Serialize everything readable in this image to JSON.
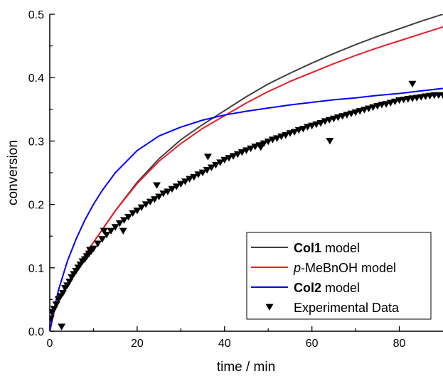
{
  "chart_data": {
    "type": "line",
    "xlabel": "time / min",
    "ylabel": "conversion",
    "xlim": [
      0,
      90
    ],
    "ylim": [
      0,
      0.5
    ],
    "xticks": [
      0,
      20,
      40,
      60,
      80
    ],
    "yticks": [
      0.0,
      0.1,
      0.2,
      0.3,
      0.4,
      0.5
    ],
    "xtick_labels": [
      "0",
      "20",
      "40",
      "60",
      "80"
    ],
    "ytick_labels": [
      "0.0",
      "0.1",
      "0.2",
      "0.3",
      "0.4",
      "0.5"
    ],
    "grid": false,
    "legend_position": "bottom-right",
    "series": [
      {
        "legend": [
          {
            "text": "Col1",
            "bold": true
          },
          {
            "text": " model"
          }
        ],
        "color": "#404040",
        "kind": "line",
        "x": [
          0,
          1,
          2,
          4,
          6,
          8,
          10,
          12,
          15,
          20,
          25,
          30,
          35,
          40,
          45,
          50,
          55,
          60,
          65,
          70,
          75,
          80,
          85,
          90
        ],
        "y": [
          0.0,
          0.03,
          0.05,
          0.075,
          0.098,
          0.12,
          0.14,
          0.16,
          0.19,
          0.235,
          0.272,
          0.302,
          0.326,
          0.348,
          0.37,
          0.39,
          0.407,
          0.423,
          0.438,
          0.452,
          0.465,
          0.477,
          0.489,
          0.5
        ]
      },
      {
        "legend": [
          {
            "text": "p",
            "italic": true
          },
          {
            "text": "-MeBnOH model"
          }
        ],
        "color": "#ed1c24",
        "kind": "line",
        "x": [
          0,
          1,
          2,
          4,
          6,
          8,
          10,
          12,
          15,
          20,
          25,
          30,
          35,
          40,
          45,
          50,
          55,
          60,
          65,
          70,
          75,
          80,
          85,
          90
        ],
        "y": [
          0.0,
          0.03,
          0.05,
          0.075,
          0.098,
          0.12,
          0.14,
          0.16,
          0.19,
          0.233,
          0.268,
          0.296,
          0.32,
          0.34,
          0.36,
          0.378,
          0.394,
          0.408,
          0.422,
          0.435,
          0.447,
          0.458,
          0.469,
          0.48
        ]
      },
      {
        "legend": [
          {
            "text": "Col2",
            "bold": true
          },
          {
            "text": " model"
          }
        ],
        "color": "#0000ff",
        "kind": "line",
        "x": [
          0,
          1,
          2,
          4,
          6,
          8,
          10,
          12,
          15,
          20,
          25,
          30,
          35,
          40,
          45,
          50,
          55,
          60,
          65,
          70,
          75,
          80,
          85,
          90
        ],
        "y": [
          0.0,
          0.035,
          0.065,
          0.11,
          0.145,
          0.175,
          0.2,
          0.222,
          0.25,
          0.285,
          0.308,
          0.322,
          0.333,
          0.341,
          0.347,
          0.352,
          0.357,
          0.361,
          0.365,
          0.368,
          0.372,
          0.375,
          0.379,
          0.383
        ]
      },
      {
        "legend": [
          {
            "text": "Experimental Data"
          }
        ],
        "color": "#000000",
        "kind": "scatter",
        "marker": "triangle-down",
        "x": [
          0.2,
          0.5,
          1,
          1.5,
          2,
          2.5,
          3,
          3.5,
          4,
          4.5,
          5,
          5.5,
          6,
          6.5,
          7,
          7.5,
          8,
          8.5,
          9,
          9.5,
          10,
          11,
          12,
          13,
          14,
          15,
          16,
          17,
          18,
          19,
          20,
          21,
          22,
          23,
          24,
          25,
          26,
          27,
          28,
          29,
          30,
          31,
          32,
          33,
          34,
          35,
          36,
          37,
          38,
          39,
          40,
          41,
          42,
          43,
          44,
          45,
          46,
          47,
          48,
          49,
          50,
          51,
          52,
          53,
          54,
          55,
          56,
          57,
          58,
          59,
          60,
          61,
          62,
          63,
          64,
          65,
          66,
          67,
          68,
          69,
          70,
          71,
          72,
          73,
          74,
          75,
          76,
          77,
          78,
          79,
          80,
          81,
          82,
          83,
          84,
          85,
          86,
          87,
          88,
          89,
          90,
          2.7,
          9.2,
          12.4,
          16.8,
          24.5,
          36.2,
          48.3,
          64.1,
          83
        ],
        "y": [
          0.02,
          0.03,
          0.035,
          0.042,
          0.05,
          0.055,
          0.06,
          0.068,
          0.072,
          0.078,
          0.085,
          0.09,
          0.095,
          0.1,
          0.105,
          0.11,
          0.113,
          0.118,
          0.122,
          0.126,
          0.13,
          0.138,
          0.145,
          0.152,
          0.158,
          0.164,
          0.17,
          0.175,
          0.18,
          0.186,
          0.19,
          0.195,
          0.2,
          0.204,
          0.208,
          0.212,
          0.217,
          0.22,
          0.224,
          0.228,
          0.232,
          0.236,
          0.24,
          0.243,
          0.247,
          0.25,
          0.254,
          0.258,
          0.262,
          0.266,
          0.27,
          0.273,
          0.276,
          0.279,
          0.282,
          0.285,
          0.288,
          0.291,
          0.293,
          0.296,
          0.299,
          0.302,
          0.304,
          0.307,
          0.309,
          0.312,
          0.314,
          0.317,
          0.319,
          0.322,
          0.324,
          0.326,
          0.328,
          0.331,
          0.333,
          0.335,
          0.337,
          0.339,
          0.341,
          0.343,
          0.345,
          0.347,
          0.349,
          0.351,
          0.353,
          0.355,
          0.357,
          0.358,
          0.36,
          0.362,
          0.364,
          0.365,
          0.366,
          0.367,
          0.368,
          0.369,
          0.37,
          0.371,
          0.372,
          0.372,
          0.372,
          0.007,
          0.128,
          0.158,
          0.158,
          0.23,
          0.275,
          0.29,
          0.3,
          0.39
        ]
      }
    ]
  }
}
